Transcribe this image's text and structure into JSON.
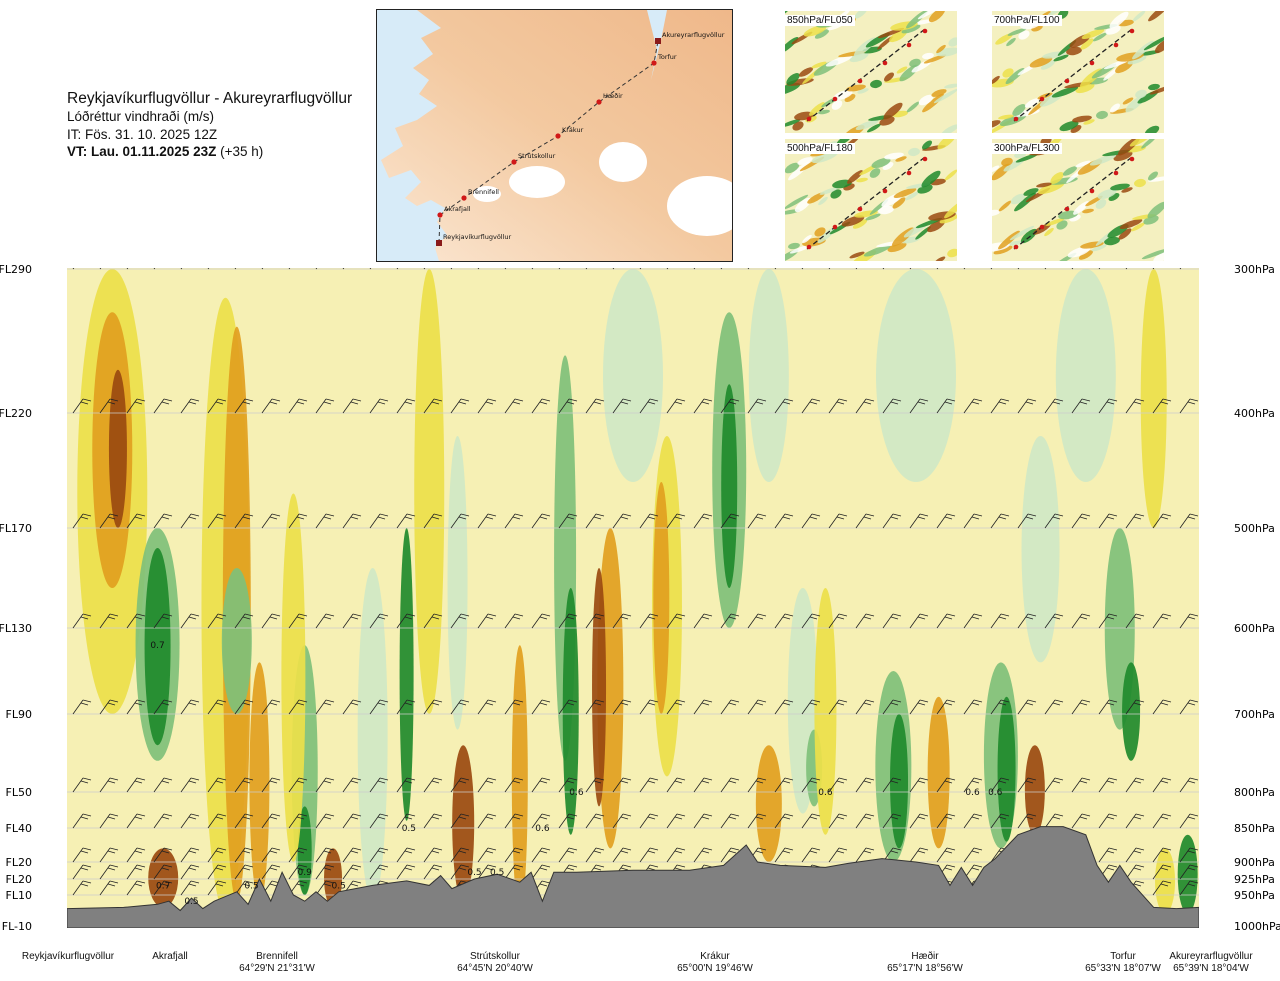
{
  "header": {
    "route": "Reykjavíkurflugvöllur - Akureyrarflugvöllur",
    "variable": "Lóðréttur vindhraði (m/s)",
    "issue_time": "IT: Fös. 31. 10. 2025 12Z",
    "valid_time_bold": "VT: Lau. 01.11.2025 23Z",
    "valid_time_offset": "(+35 h)"
  },
  "route_map": {
    "waypoints": [
      "Akureyrarflugvöllur",
      "Torfur",
      "Hæðir",
      "Krákur",
      "Strútskollur",
      "Brennifell",
      "Akrafjall",
      "Reykjavíkurflugvöllur"
    ]
  },
  "mini_maps": [
    {
      "label": "850hPa/FL050"
    },
    {
      "label": "700hPa/FL100"
    },
    {
      "label": "500hPa/FL180"
    },
    {
      "label": "300hPa/FL300"
    }
  ],
  "colors": {
    "strong_up": "#1f8a2c",
    "up": "#7fc07a",
    "weak_up": "#cfe8c6",
    "neutral": "#f6f0b4",
    "weak_down": "#ece04a",
    "down": "#e1a020",
    "strong_down": "#9a4a10",
    "terrain": "#808080"
  },
  "chart_data": {
    "type": "heatmap",
    "title": "Lóðréttur vindhraði (m/s)",
    "left_axis_flight_levels": [
      "FL290",
      "FL220",
      "FL170",
      "FL130",
      "FL90",
      "FL50",
      "FL40",
      "FL20",
      "FL20",
      "FL10",
      "FL-10"
    ],
    "right_axis_pressure": [
      "300hPa",
      "400hPa",
      "500hPa",
      "600hPa",
      "700hPa",
      "800hPa",
      "850hPa",
      "900hPa",
      "925hPa",
      "950hPa",
      "1000hPa"
    ],
    "pressure_levels_hpa": [
      300,
      400,
      500,
      600,
      700,
      800,
      850,
      900,
      925,
      950,
      1000
    ],
    "x_waypoints": [
      {
        "name": "Reykjavíkurflugvöllur",
        "coords": ""
      },
      {
        "name": "Akrafjall",
        "coords": ""
      },
      {
        "name": "Brennifell",
        "coords": "64°29'N 21°31'W"
      },
      {
        "name": "Strútskollur",
        "coords": "64°45'N 20°40'W"
      },
      {
        "name": "Krákur",
        "coords": "65°00'N 19°46'W"
      },
      {
        "name": "Hæðir",
        "coords": "65°17'N 18°56'W"
      },
      {
        "name": "Torfur",
        "coords": "65°33'N 18°07'W"
      },
      {
        "name": "Akureyrarflugvöllur",
        "coords": "65°39'N 18°04'W"
      }
    ],
    "contour_labels": [
      {
        "text": "0.7",
        "x": 0.08,
        "p": 620
      },
      {
        "text": "0.7",
        "x": 0.085,
        "p": 935
      },
      {
        "text": "0.5",
        "x": 0.11,
        "p": 960
      },
      {
        "text": "0.5",
        "x": 0.163,
        "p": 935
      },
      {
        "text": "0.9",
        "x": 0.21,
        "p": 915
      },
      {
        "text": "0.5",
        "x": 0.24,
        "p": 935
      },
      {
        "text": "0.5",
        "x": 0.302,
        "p": 850
      },
      {
        "text": "0.5",
        "x": 0.36,
        "p": 915
      },
      {
        "text": "0.5",
        "x": 0.38,
        "p": 915
      },
      {
        "text": "0.6",
        "x": 0.42,
        "p": 850
      },
      {
        "text": "0.6",
        "x": 0.45,
        "p": 800
      },
      {
        "text": "0.6",
        "x": 0.67,
        "p": 800
      },
      {
        "text": "0.6",
        "x": 0.8,
        "p": 800
      },
      {
        "text": "0.6",
        "x": 0.82,
        "p": 800
      }
    ],
    "legend": "none"
  }
}
